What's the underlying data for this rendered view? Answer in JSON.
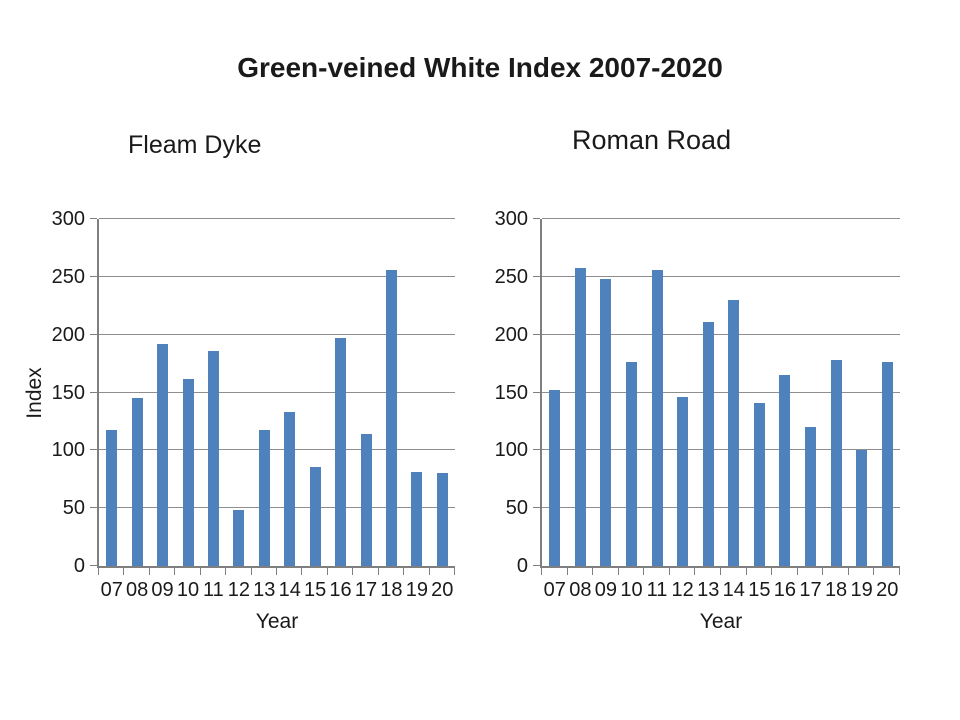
{
  "title": "Green-veined White Index 2007-2020",
  "colors": {
    "bar": "#4f81bd",
    "gridline": "#8e8e8e",
    "axis": "#7f7f7f",
    "text": "#1a1a1a"
  },
  "chart_data": [
    {
      "type": "bar",
      "title": "Fleam Dyke",
      "xlabel": "Year",
      "ylabel": "Index",
      "ylim": [
        0,
        300
      ],
      "ytick_interval": 50,
      "grid": true,
      "legend": false,
      "categories": [
        "07",
        "08",
        "09",
        "10",
        "11",
        "12",
        "13",
        "14",
        "15",
        "16",
        "17",
        "18",
        "19",
        "20"
      ],
      "values": [
        118,
        145,
        192,
        162,
        186,
        48,
        118,
        133,
        86,
        197,
        114,
        256,
        81,
        80
      ]
    },
    {
      "type": "bar",
      "title": "Roman Road",
      "xlabel": "Year",
      "ylabel": "",
      "ylim": [
        0,
        300
      ],
      "ytick_interval": 50,
      "grid": true,
      "legend": false,
      "categories": [
        "07",
        "08",
        "09",
        "10",
        "11",
        "12",
        "13",
        "14",
        "15",
        "16",
        "17",
        "18",
        "19",
        "20"
      ],
      "values": [
        152,
        258,
        248,
        176,
        256,
        146,
        211,
        230,
        141,
        165,
        120,
        178,
        100,
        176
      ]
    }
  ]
}
